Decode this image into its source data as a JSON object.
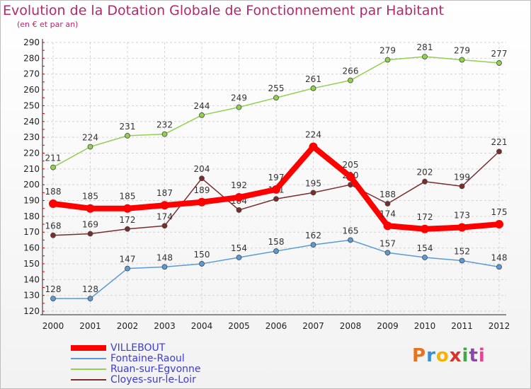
{
  "title": "Evolution de la Dotation Globale de Fonctionnement par Habitant",
  "subtitle": "(en € et par an)",
  "logo": {
    "text": "Proxiti",
    "colors": [
      "#e8731f",
      "#3a8ed6",
      "#f2b400",
      "#d9342b",
      "#46a546",
      "#8e44ad",
      "#e84393"
    ]
  },
  "chart_data": {
    "type": "line",
    "title": "Evolution de la Dotation Globale de Fonctionnement par Habitant",
    "subtitle": "(en € et par an)",
    "x": [
      "2000",
      "2001",
      "2002",
      "2003",
      "2004",
      "2005",
      "2006",
      "2007",
      "2008",
      "2009",
      "2010",
      "2011",
      "2012"
    ],
    "ylim": [
      120,
      290
    ],
    "yticks": [
      120,
      130,
      140,
      150,
      160,
      170,
      180,
      190,
      200,
      210,
      220,
      230,
      240,
      250,
      260,
      270,
      280,
      290
    ],
    "grid": true,
    "legend_position": "bottom-left",
    "series": [
      {
        "name": "VILLEBOUT",
        "color": "#ff0000",
        "values": [
          188,
          185,
          185,
          187,
          189,
          192,
          197,
          224,
          205,
          174,
          172,
          173,
          175
        ]
      },
      {
        "name": "Fontaine-Raoul",
        "color": "#5b9bd5",
        "values": [
          128,
          128,
          147,
          148,
          150,
          154,
          158,
          162,
          165,
          157,
          154,
          152,
          148
        ]
      },
      {
        "name": "Ruan-sur-Egvonne",
        "color": "#92d050",
        "values": [
          211,
          224,
          231,
          232,
          244,
          249,
          255,
          261,
          266,
          279,
          281,
          279,
          277
        ]
      },
      {
        "name": "Cloyes-sur-le-Loir",
        "color": "#7b2c2c",
        "values": [
          168,
          169,
          172,
          174,
          204,
          184,
          191,
          195,
          200,
          188,
          202,
          199,
          221
        ]
      }
    ]
  }
}
